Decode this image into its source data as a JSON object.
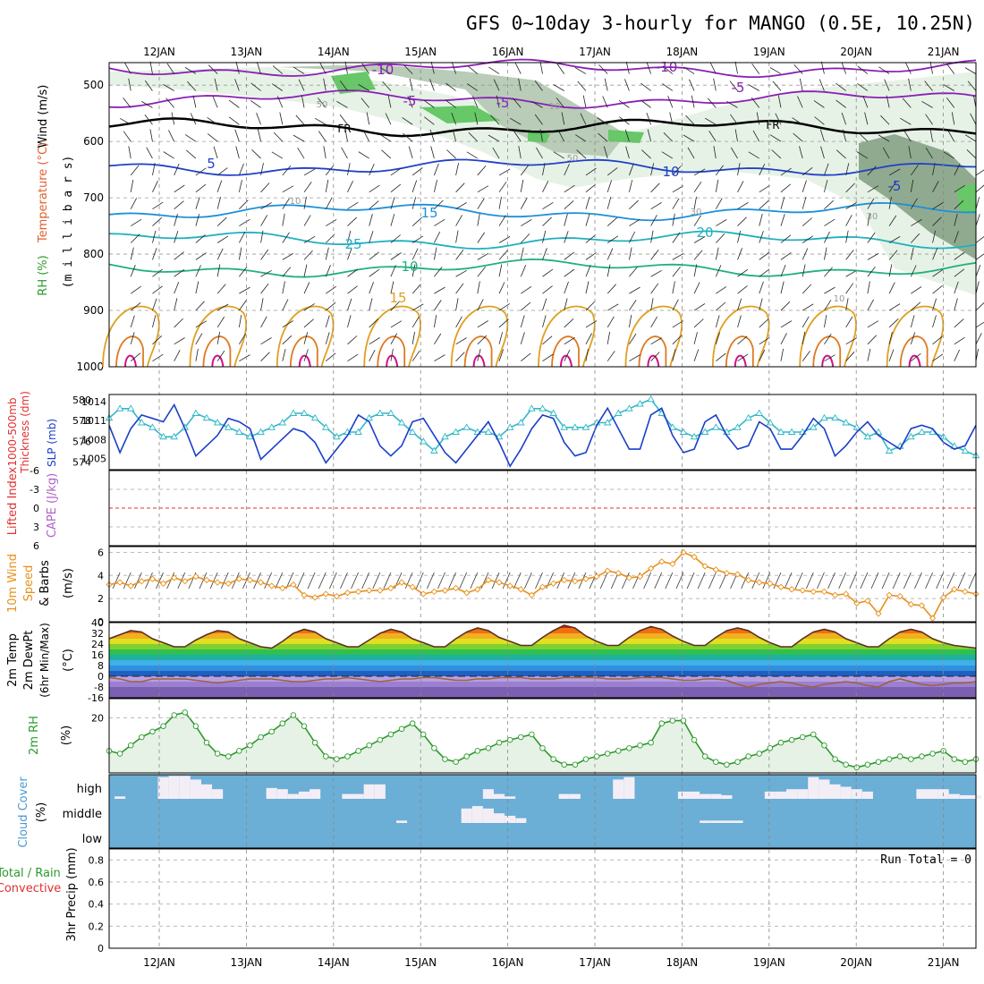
{
  "title": "GFS 0~10day 3-hourly for MANGO (0.5E, 10.25N)",
  "days": [
    "12JAN",
    "13JAN",
    "14JAN",
    "15JAN",
    "16JAN",
    "17JAN",
    "18JAN",
    "19JAN",
    "20JAN",
    "21JAN"
  ],
  "colors": {
    "temp_cold": "#8a1fb5",
    "temp_5": "#2040c8",
    "temp_10": "#1e90d8",
    "temp_15": "#20b0c0",
    "temp_20": "#20b080",
    "temp_25": "#e0a020",
    "temp_30": "#e07820",
    "temp_35": "#d0108a",
    "freezing": "#000000",
    "rh_light": "#e6f2e6",
    "rh_mid": "#b8ccb8",
    "rh_dark": "#90aa90",
    "rh_wet": "#66c866",
    "slp": "#1a3fc8",
    "thickness": "#30b8c8",
    "wind10": "#e8901a",
    "rh2m": "#2c9a2c",
    "cloud_bg": "#6baed6",
    "cloud_fill": "#f3eef6",
    "zero_line": "#e03030"
  },
  "chart_data": [
    {
      "panel": "cross-section",
      "type": "contour",
      "ylabel_parts": [
        "Wind (m/s)",
        "Temperature (°C)",
        "RH (%)"
      ],
      "yunit_label": "(m i l l i b a r s)",
      "ylim": [
        1000,
        460
      ],
      "yticks": [
        "500",
        "600",
        "700",
        "800",
        "900",
        "1000"
      ],
      "temperature_contour_labels": [
        "-10",
        "-10",
        "-5",
        "-5",
        "-5",
        "5",
        "10",
        "15",
        "20",
        "25",
        "10",
        "15",
        "-5"
      ],
      "freezing_label": "FR",
      "rh_contour_labels": [
        "50",
        "50",
        "30",
        "10",
        "10",
        "30",
        "10"
      ],
      "contours_hPa": [
        {
          "label": "-10",
          "color": "temp_cold",
          "p": 470
        },
        {
          "label": "-5",
          "color": "temp_cold",
          "p": 525
        },
        {
          "label": "FR",
          "color": "freezing",
          "p": 575
        },
        {
          "label": "5",
          "color": "temp_5",
          "p": 645
        },
        {
          "label": "10",
          "color": "temp_10",
          "p": 725
        },
        {
          "label": "15",
          "color": "temp_15",
          "p": 775
        },
        {
          "label": "20",
          "color": "temp_20",
          "p": 825
        }
      ]
    },
    {
      "panel": "slp-thickness",
      "type": "line",
      "ylabel_parts": [
        "1000-500mb",
        "Thickness (dm)",
        "SLP (mb)"
      ],
      "yticks_left": [
        "580",
        "578",
        "576",
        "574"
      ],
      "yticks_right": [
        "1014",
        "1011",
        "1008",
        "1005"
      ],
      "ylim_left": [
        572,
        580
      ],
      "ylim_right": [
        1005,
        1016
      ],
      "series": [
        {
          "name": "SLP (mb)",
          "color": "slp",
          "axis": "right",
          "values": [
            1011.5,
            1007.5,
            1011,
            1013,
            1012.5,
            1012,
            1014.5,
            1011,
            1007,
            1008.5,
            1010,
            1012.5,
            1012,
            1011,
            1006.5,
            1008,
            1009.5,
            1011,
            1010.5,
            1009,
            1006,
            1008,
            1010,
            1013,
            1012,
            1008.5,
            1007,
            1008.5,
            1012,
            1012.5,
            1010,
            1007.5,
            1006,
            1008,
            1010,
            1012,
            1009,
            1005.5,
            1008,
            1011,
            1013,
            1012.5,
            1009,
            1007,
            1007.5,
            1011.5,
            1014,
            1011,
            1008,
            1008,
            1013,
            1014,
            1010,
            1007.5,
            1008,
            1012,
            1013,
            1010,
            1008,
            1008.5,
            1012,
            1011,
            1008,
            1008,
            1010,
            1012.5,
            1011,
            1007,
            1008.5,
            1010.5,
            1012,
            1010,
            1009,
            1008,
            1011,
            1011.5,
            1011,
            1009,
            1008,
            1008.5,
            1011.5
          ]
        },
        {
          "name": "1000-500mb Thickness (dm)",
          "color": "thickness",
          "axis": "left",
          "values": [
            577.5,
            578.5,
            578.5,
            577,
            576.5,
            575.5,
            575.5,
            576.5,
            578,
            577.5,
            577,
            576.5,
            576,
            575.5,
            576,
            576.5,
            577,
            578,
            578,
            577.5,
            576.5,
            575.5,
            576,
            576,
            577.5,
            578,
            578,
            577,
            576,
            575,
            574,
            575.5,
            576,
            576.5,
            576,
            576,
            575.5,
            576.5,
            577,
            578.5,
            578.5,
            578,
            576.5,
            576.5,
            576.5,
            577,
            577,
            578,
            578.5,
            579,
            579.5,
            578,
            576.5,
            576,
            575.5,
            576,
            576.5,
            576,
            576.5,
            577.5,
            578,
            577,
            576,
            576,
            576,
            576.5,
            577.5,
            577.5,
            577,
            576.5,
            575.5,
            576,
            574,
            574.5,
            575.5,
            576,
            576,
            575.5,
            574.5,
            574,
            573.5
          ]
        }
      ]
    },
    {
      "panel": "lifted-index-cape",
      "type": "line",
      "ylabel_parts": [
        "Lifted Index",
        "CAPE (J/kg)"
      ],
      "yticks": [
        "-6",
        "-3",
        "0",
        "3",
        "6"
      ],
      "ylim": [
        -6,
        6
      ],
      "series": []
    },
    {
      "panel": "wind-10m",
      "type": "line",
      "ylabel_parts": [
        "10m Wind",
        "Speed",
        "& Barbs",
        "(m/s)"
      ],
      "yticks": [
        "6",
        "4",
        "2",
        "0"
      ],
      "ylim": [
        0,
        6.5
      ],
      "series": [
        {
          "name": "Speed",
          "color": "wind10",
          "values": [
            3.2,
            3.4,
            3.1,
            3.5,
            3.7,
            3.3,
            3.8,
            3.5,
            3.9,
            3.6,
            3.4,
            3.3,
            3.7,
            3.6,
            3.4,
            3.1,
            2.9,
            3.2,
            2.3,
            2.1,
            2.4,
            2.2,
            2.5,
            2.6,
            2.7,
            2.7,
            2.9,
            3.4,
            3.0,
            2.4,
            2.6,
            2.7,
            2.9,
            2.5,
            2.8,
            3.6,
            3.4,
            3.1,
            2.8,
            2.3,
            3.0,
            3.3,
            3.6,
            3.5,
            3.7,
            3.9,
            4.4,
            4.2,
            3.8,
            3.9,
            4.6,
            5.2,
            5.0,
            6.0,
            5.6,
            4.8,
            4.5,
            4.2,
            4.1,
            3.6,
            3.4,
            3.3,
            3.0,
            2.8,
            2.7,
            2.6,
            2.6,
            2.3,
            2.4,
            1.6,
            1.8,
            0.7,
            2.3,
            2.2,
            1.5,
            1.4,
            0.3,
            2.1,
            2.8,
            2.6,
            2.4
          ]
        }
      ]
    },
    {
      "panel": "temp-2m",
      "type": "area",
      "ylabel_parts": [
        "2m Temp",
        "2m DewPt",
        "(6hr Min/Max)",
        "(°C)"
      ],
      "yticks": [
        "40",
        "32",
        "24",
        "16",
        "8",
        "0",
        "-8",
        "-16"
      ],
      "ylim": [
        -16,
        40
      ],
      "series": [
        {
          "name": "2m Temp",
          "values": [
            28,
            31,
            34,
            33,
            28,
            25,
            22,
            22,
            27,
            31,
            34,
            33,
            28,
            25,
            22,
            21,
            26,
            32,
            35,
            33,
            28,
            25,
            22,
            22,
            27,
            32,
            35,
            33,
            28,
            25,
            22,
            22,
            28,
            33,
            36,
            34,
            29,
            26,
            23,
            23,
            29,
            34,
            38,
            36,
            30,
            26,
            23,
            23,
            29,
            34,
            37,
            35,
            30,
            26,
            23,
            23,
            29,
            34,
            36,
            34,
            29,
            25,
            22,
            22,
            28,
            33,
            35,
            33,
            28,
            25,
            22,
            22,
            28,
            33,
            35,
            33,
            28,
            25,
            23,
            22,
            21
          ]
        },
        {
          "name": "2m DewPt",
          "values": [
            -1,
            -2,
            -4,
            -4,
            -2,
            -2,
            -2,
            -2,
            -3,
            -4,
            -5,
            -4,
            -3,
            -2,
            -2,
            -2,
            -3,
            -4,
            -4,
            -3,
            -2,
            -2,
            -1,
            -2,
            -3,
            -4,
            -3,
            -2,
            -2,
            -1,
            -1,
            -2,
            -3,
            -3,
            -2,
            -2,
            -1,
            -1,
            -1,
            -2,
            -2,
            -2,
            -1,
            -1,
            -1,
            -1,
            -2,
            -2,
            -2,
            -1,
            -1,
            -1,
            -2,
            -3,
            -3,
            -2,
            -2,
            -3,
            -6,
            -8,
            -6,
            -5,
            -4,
            -5,
            -7,
            -8,
            -6,
            -5,
            -4,
            -5,
            -7,
            -8,
            -4,
            -2,
            -4,
            -6,
            -7,
            -6,
            -5,
            -5,
            -4
          ]
        }
      ]
    },
    {
      "panel": "rh-2m",
      "type": "area",
      "ylabel_parts": [
        "2m RH",
        "(%)"
      ],
      "yticks": [
        "20"
      ],
      "ylim": [
        0,
        27
      ],
      "series": [
        {
          "name": "2m RH",
          "color": "rh2m",
          "values": [
            8,
            7,
            10,
            13,
            15,
            17,
            21,
            22,
            17,
            11,
            7,
            6,
            8,
            10,
            13,
            15,
            18,
            21,
            17,
            11,
            6,
            5,
            6,
            8,
            10,
            12,
            14,
            16,
            18,
            14,
            9,
            5,
            4,
            6,
            8,
            9,
            11,
            12,
            13,
            14,
            9,
            5,
            3,
            3,
            5,
            6,
            7,
            8,
            9,
            10,
            11,
            18,
            19,
            19,
            12,
            6,
            4,
            3,
            4,
            6,
            7,
            9,
            11,
            12,
            13,
            14,
            10,
            5,
            3,
            2,
            3,
            4,
            5,
            6,
            5,
            6,
            7,
            8,
            5,
            4,
            5
          ]
        }
      ]
    },
    {
      "panel": "cloud-cover",
      "type": "bar",
      "ylabel_parts": [
        "Cloud Cover",
        "(%)"
      ],
      "levels": [
        "high",
        "middle",
        "low"
      ],
      "high_percent": [
        0,
        10,
        0,
        0,
        0,
        90,
        95,
        95,
        80,
        60,
        40,
        0,
        0,
        0,
        0,
        45,
        40,
        20,
        30,
        40,
        0,
        0,
        20,
        20,
        60,
        60,
        0,
        0,
        0,
        0,
        0,
        0,
        0,
        0,
        0,
        40,
        20,
        10,
        0,
        0,
        0,
        0,
        20,
        20,
        0,
        0,
        0,
        80,
        90,
        0,
        0,
        0,
        0,
        30,
        30,
        20,
        20,
        15,
        0,
        0,
        0,
        30,
        30,
        40,
        40,
        90,
        80,
        60,
        50,
        40,
        30,
        0,
        0,
        0,
        0,
        40,
        40,
        40,
        20,
        15,
        15
      ],
      "middle_percent": [
        0,
        0,
        0,
        0,
        0,
        0,
        0,
        0,
        0,
        0,
        0,
        0,
        0,
        0,
        0,
        0,
        0,
        0,
        0,
        0,
        0,
        0,
        0,
        0,
        0,
        0,
        0,
        10,
        0,
        0,
        0,
        0,
        0,
        60,
        70,
        60,
        40,
        30,
        20,
        0,
        0,
        0,
        0,
        0,
        0,
        0,
        0,
        0,
        0,
        0,
        0,
        0,
        0,
        0,
        0,
        10,
        10,
        10,
        10,
        0,
        0,
        0,
        0,
        0,
        0,
        0,
        0,
        0,
        0,
        0,
        0,
        0,
        0,
        0,
        0,
        0,
        0,
        0,
        0,
        0,
        0
      ],
      "low_percent": []
    },
    {
      "panel": "precip-3hr",
      "type": "bar",
      "ylabel_parts": [
        "Total / Rain",
        "Convective",
        "3hr Precip (mm)"
      ],
      "yticks": [
        "0.8",
        "0.6",
        "0.4",
        "0.2",
        "0"
      ],
      "ylim": [
        0,
        0.9
      ],
      "run_total_label": "Run Total = 0",
      "values": []
    }
  ]
}
